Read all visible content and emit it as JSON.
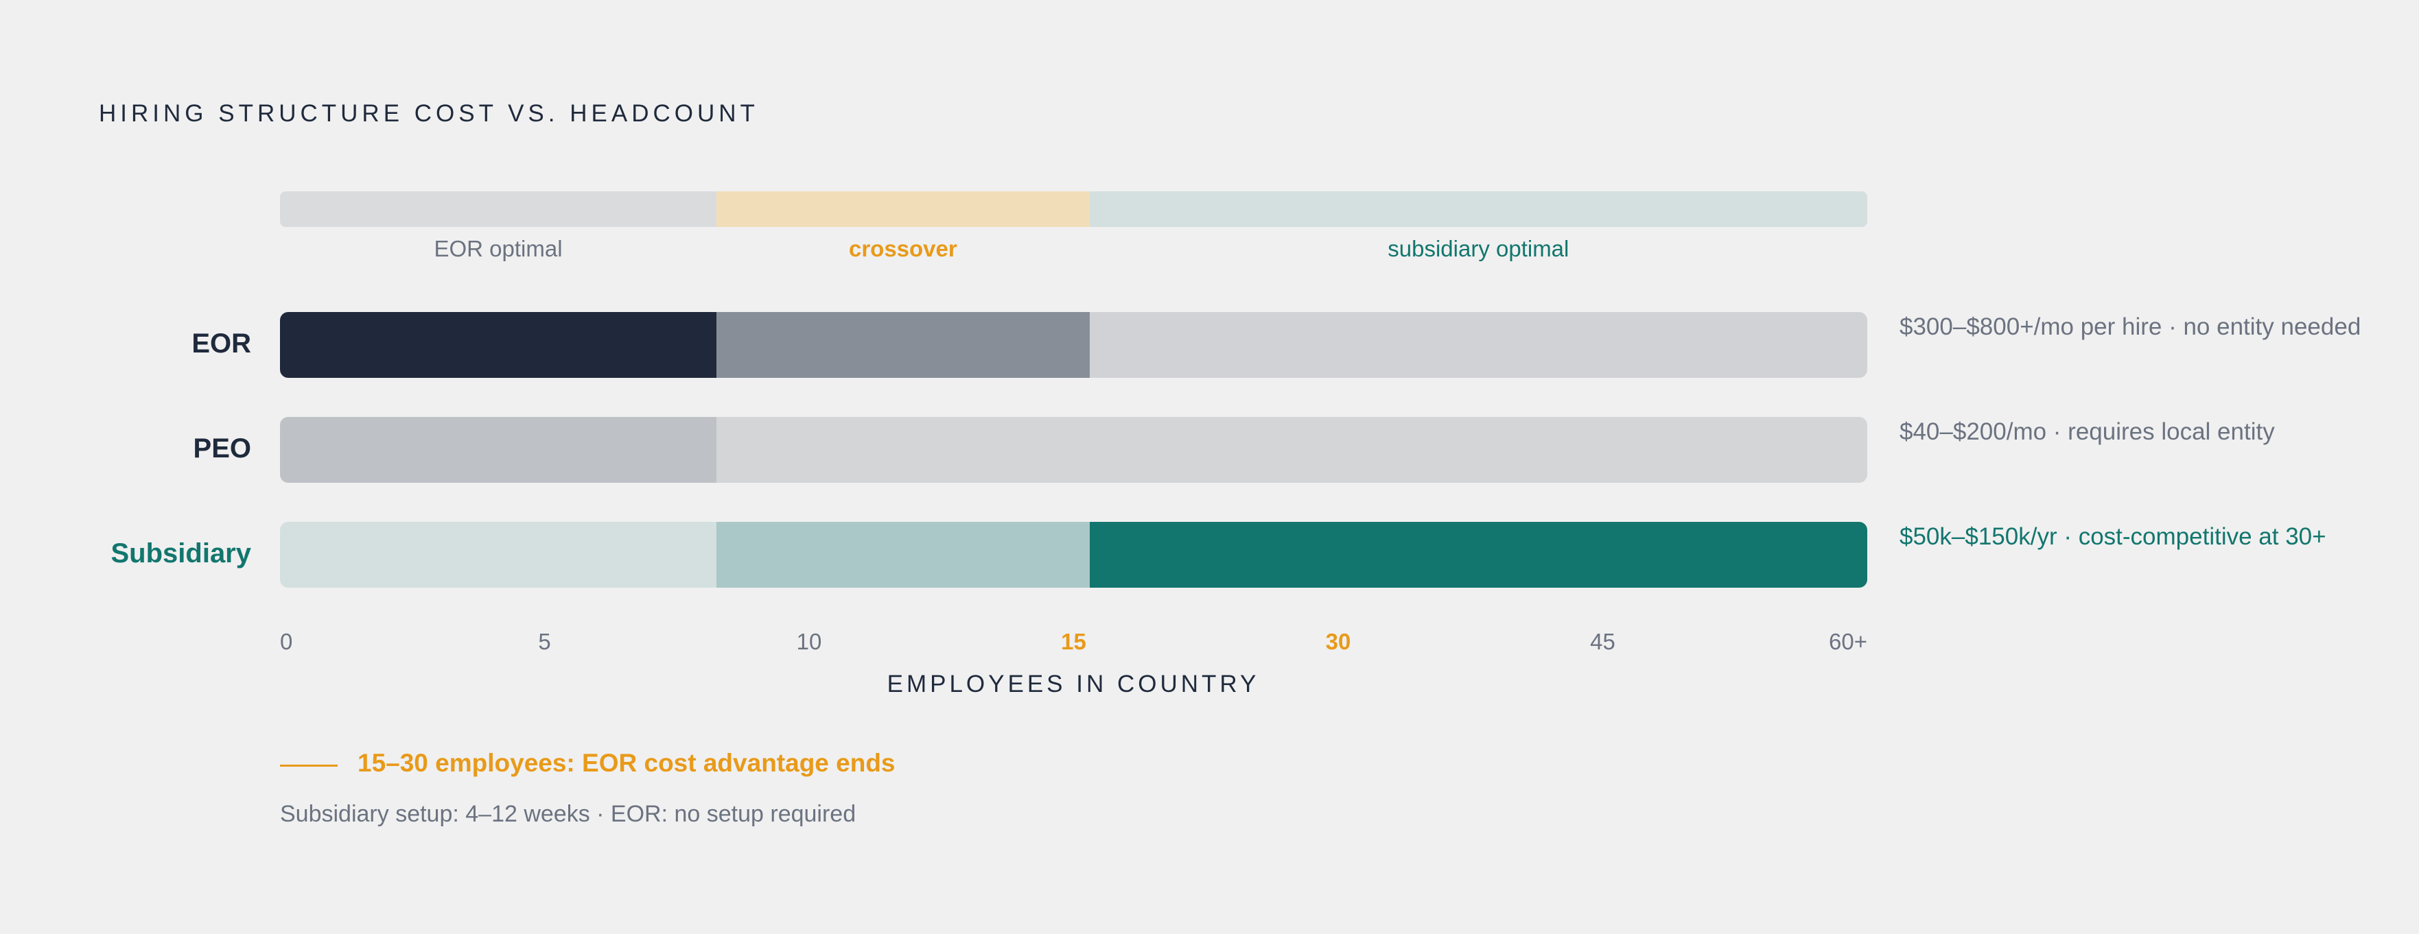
{
  "title": "HIRING STRUCTURE COST VS. HEADCOUNT",
  "colors": {
    "ink": "#1f2a3c",
    "muted": "#6b7280",
    "amber": "#e89a1a",
    "teal": "#12766e"
  },
  "zones": [
    {
      "label": "EOR optimal",
      "from": 0,
      "to": 16.5,
      "color": "#dadbdd",
      "text_color": "#6b7280",
      "bold": false
    },
    {
      "label": "crossover",
      "from": 16.5,
      "to": 30.6,
      "color": "#f1deb8",
      "text_color": "#e89a1a",
      "bold": true
    },
    {
      "label": "subsidiary optimal",
      "from": 30.6,
      "to": 60,
      "color": "#d4dfdf",
      "text_color": "#12766e",
      "bold": false
    }
  ],
  "chart_data": {
    "type": "bar",
    "title": "HIRING STRUCTURE COST VS. HEADCOUNT",
    "xlabel": "EMPLOYEES IN COUNTRY",
    "x_ticks": [
      "0",
      "5",
      "10",
      "15",
      "30",
      "45",
      "60+"
    ],
    "highlight_ticks": [
      "15",
      "30"
    ],
    "xlim": [
      0,
      60
    ],
    "series": [
      {
        "name": "EOR",
        "label_color": "#1f2a3c",
        "note": "$300–$800+/mo per hire · no entity needed",
        "note_color": "#6b7280",
        "segments": [
          {
            "from": 0,
            "to": 16.5,
            "color": "#1f293b"
          },
          {
            "from": 16.5,
            "to": 30.6,
            "color": "#888e97"
          },
          {
            "from": 30.6,
            "to": 60,
            "color": "#d1d2d5"
          }
        ]
      },
      {
        "name": "PEO",
        "label_color": "#1f2a3c",
        "note": "$40–$200/mo · requires local entity",
        "note_color": "#6b7280",
        "segments": [
          {
            "from": 0,
            "to": 16.5,
            "color": "#bec1c6"
          },
          {
            "from": 16.5,
            "to": 60,
            "color": "#d4d5d7"
          }
        ]
      },
      {
        "name": "Subsidiary",
        "label_color": "#12766e",
        "note": "$50k–$150k/yr · cost-competitive at 30+",
        "note_color": "#12766e",
        "segments": [
          {
            "from": 0,
            "to": 16.5,
            "color": "#d4dfdf"
          },
          {
            "from": 16.5,
            "to": 30.6,
            "color": "#aac8c7"
          },
          {
            "from": 30.6,
            "to": 60,
            "color": "#12766e"
          }
        ]
      }
    ]
  },
  "callout": {
    "text": "15–30 employees: EOR cost advantage ends",
    "color": "#e89a1a"
  },
  "footnote": "Subsidiary setup: 4–12 weeks · EOR: no setup required"
}
